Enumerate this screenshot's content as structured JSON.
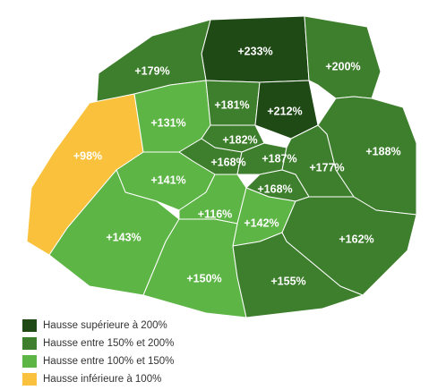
{
  "regions": [
    {
      "label": "+233%",
      "color": "#1f4a15"
    },
    {
      "label": "+200%",
      "color": "#3e7f2d"
    },
    {
      "label": "+179%",
      "color": "#3e7f2d"
    },
    {
      "label": "+98%",
      "color": "#fac23c"
    },
    {
      "label": "+131%",
      "color": "#5db546"
    },
    {
      "label": "+181%",
      "color": "#3e7f2d"
    },
    {
      "label": "+212%",
      "color": "#1f4a15"
    },
    {
      "label": "+188%",
      "color": "#3e7f2d"
    },
    {
      "label": "+182%",
      "color": "#3e7f2d"
    },
    {
      "label": "+168%",
      "color": "#3e7f2d"
    },
    {
      "label": "+187%",
      "color": "#3e7f2d"
    },
    {
      "label": "+177%",
      "color": "#3e7f2d"
    },
    {
      "label": "+168%",
      "color": "#3e7f2d"
    },
    {
      "label": "+141%",
      "color": "#5db546"
    },
    {
      "label": "+116%",
      "color": "#5db546"
    },
    {
      "label": "+142%",
      "color": "#5db546"
    },
    {
      "label": "+162%",
      "color": "#3e7f2d"
    },
    {
      "label": "+143%",
      "color": "#5db546"
    },
    {
      "label": "+150%",
      "color": "#5db546"
    },
    {
      "label": "+155%",
      "color": "#3e7f2d"
    }
  ],
  "legend": [
    {
      "label": "Hausse supérieure à 200%",
      "color": "#1f4a15"
    },
    {
      "label": "Hausse entre 150% et 200%",
      "color": "#3e7f2d"
    },
    {
      "label": "Hausse entre 100% et 150%",
      "color": "#5db546"
    },
    {
      "label": "Hausse inférieure à 100%",
      "color": "#fac23c"
    }
  ]
}
